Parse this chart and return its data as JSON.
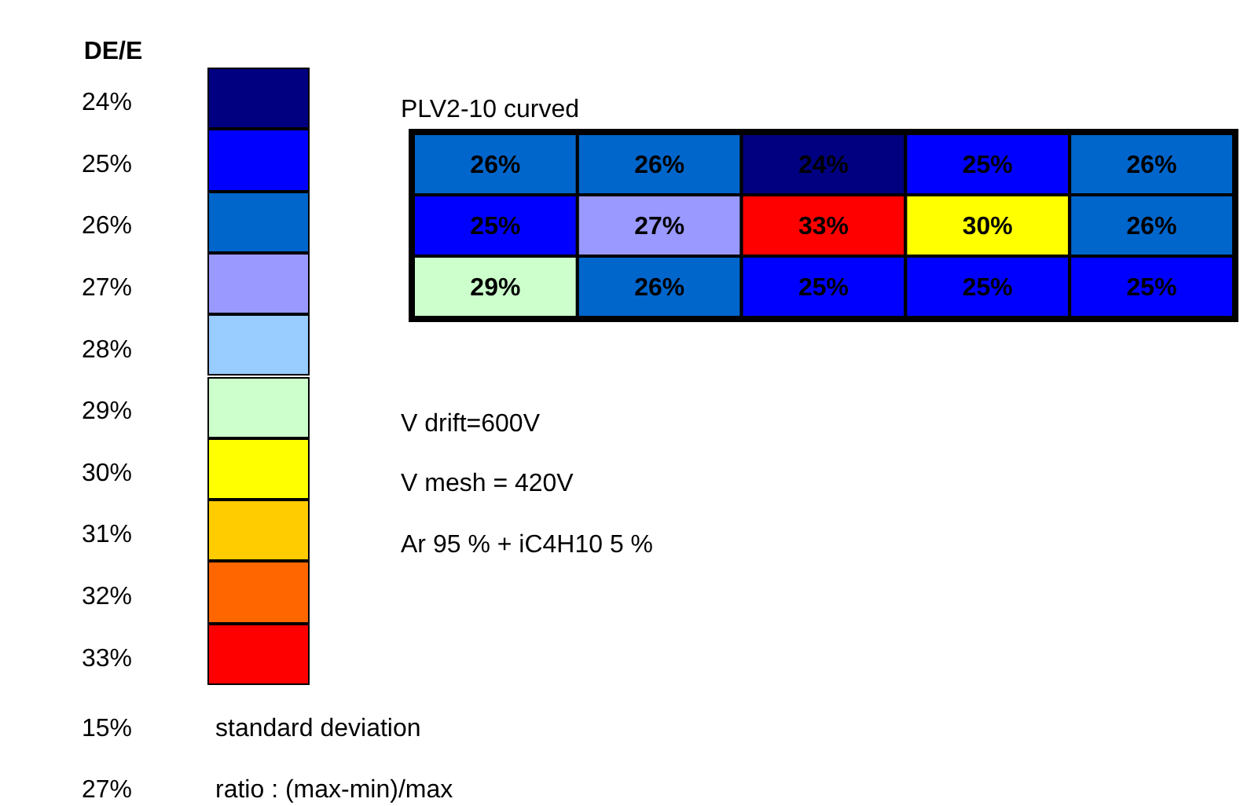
{
  "chart_data": {
    "type": "heatmap",
    "title": "PLV2-10 curved",
    "clabel": "DE/E",
    "categories": [
      null,
      null,
      null,
      null,
      null
    ],
    "y_categories": [
      null,
      null,
      null
    ],
    "cells": [
      [
        26,
        26,
        24,
        25,
        26
      ],
      [
        25,
        27,
        33,
        30,
        26
      ],
      [
        29,
        26,
        25,
        25,
        25
      ]
    ],
    "cell_labels": [
      [
        "26%",
        "26%",
        "24%",
        "25%",
        "26%"
      ],
      [
        "25%",
        "27%",
        "33%",
        "30%",
        "26%"
      ],
      [
        "29%",
        "26%",
        "25%",
        "25%",
        "25%"
      ]
    ],
    "clim": [
      24,
      33
    ],
    "cticks": [
      {
        "value": 24,
        "label": "24%"
      },
      {
        "value": 25,
        "label": "25%"
      },
      {
        "value": 26,
        "label": "26%"
      },
      {
        "value": 27,
        "label": "27%"
      },
      {
        "value": 28,
        "label": "28%"
      },
      {
        "value": 29,
        "label": "29%"
      },
      {
        "value": 30,
        "label": "30%"
      },
      {
        "value": 31,
        "label": "31%"
      },
      {
        "value": 32,
        "label": "32%"
      },
      {
        "value": 33,
        "label": "33%"
      }
    ],
    "colors": [
      "#000080",
      "#0000ff",
      "#0066cc",
      "#9999ff",
      "#99ccff",
      "#ccffcc",
      "#ffff00",
      "#ffcc00",
      "#ff6600",
      "#ff0000"
    ],
    "annotations": [
      "V drift=600V",
      "V mesh = 420V",
      "Ar 95 % + iC4H10 5 %",
      "15%",
      "standard deviation",
      "27%",
      "ratio : (max-min)/max"
    ]
  }
}
